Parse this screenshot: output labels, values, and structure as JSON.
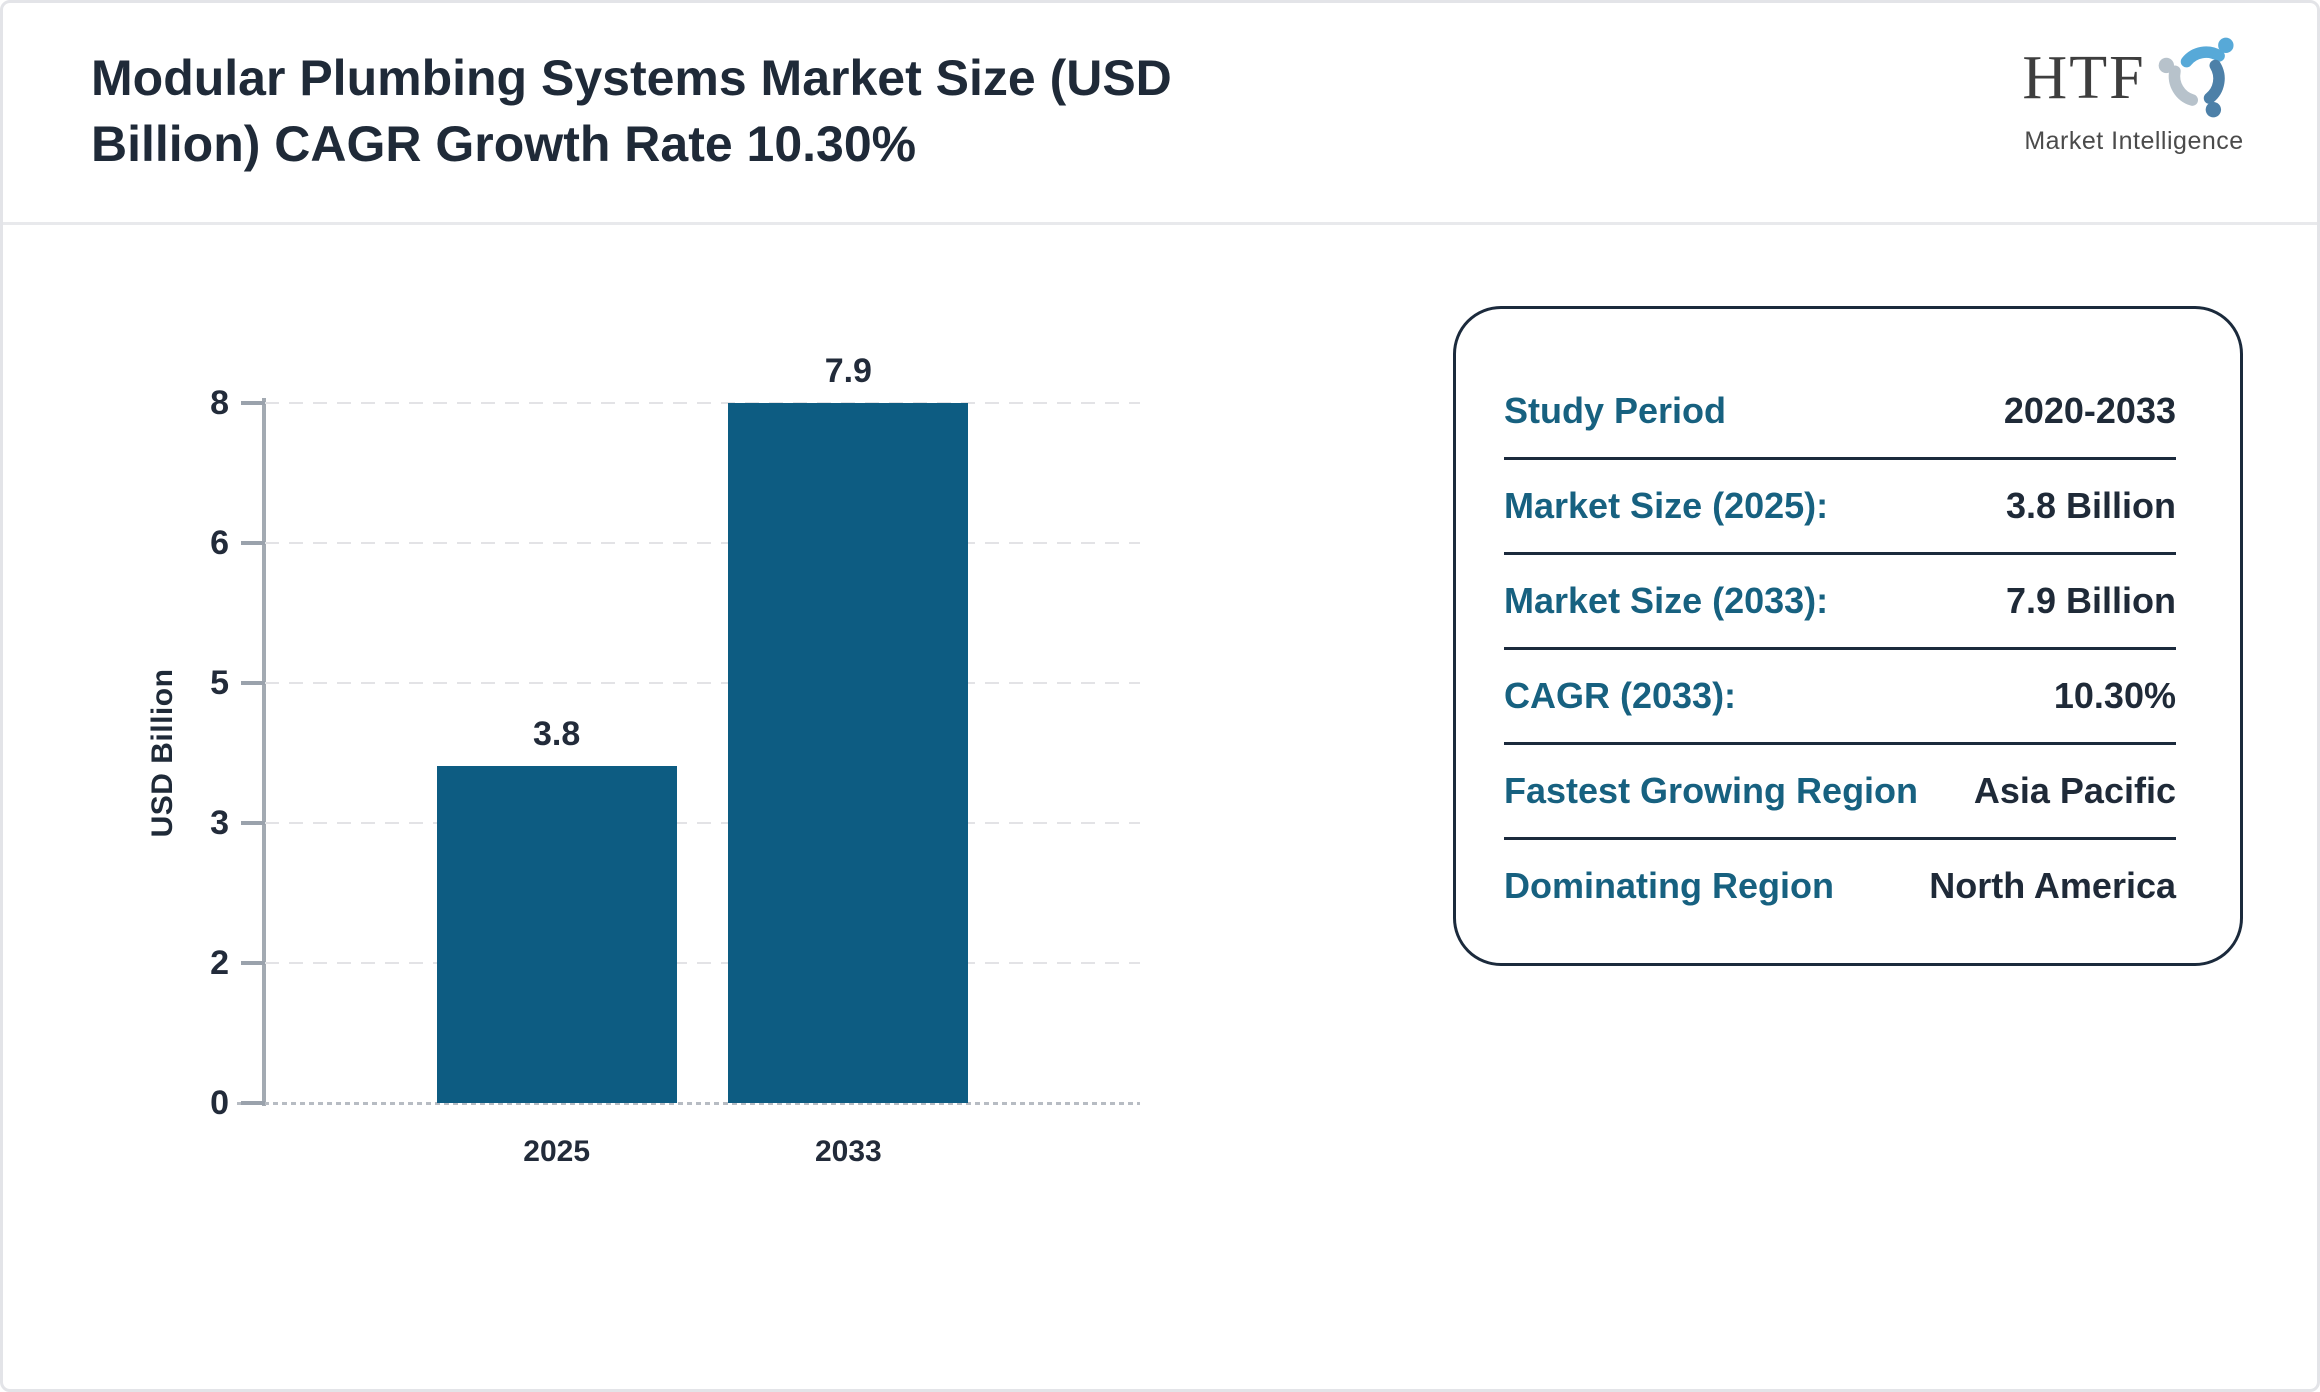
{
  "header": {
    "title": "Modular Plumbing Systems Market Size (USD Billion) CAGR Growth Rate 10.30%",
    "logo": {
      "acronym": "HTF",
      "subtitle": "Market Intelligence",
      "icon": "htf-swirl-icon",
      "colors": {
        "figure_top": "#57a9d8",
        "figure_right": "#4d80a8",
        "figure_left": "#b7c2cb"
      }
    }
  },
  "chart_data": {
    "type": "bar",
    "title": "Modular Plumbing Systems Market Size (USD Billion) CAGR Growth Rate 10.30%",
    "categories": [
      "2025",
      "2033"
    ],
    "values": [
      3.8,
      7.9
    ],
    "bar_labels": [
      "3.8",
      "7.9"
    ],
    "xlabel": "",
    "ylabel": "USD Billion",
    "y_tick_labels_top_to_bottom": [
      "8",
      "6",
      "5",
      "3",
      "2",
      "0"
    ],
    "ylim": [
      0,
      8
    ],
    "value_scale_max": 7.9,
    "grid": "horizontal-dashed",
    "legend": "none",
    "bar_color": "#0d5c82"
  },
  "panel": {
    "rows": [
      {
        "label": "Study Period",
        "value": "2020-2033"
      },
      {
        "label": "Market Size (2025):",
        "value": "3.8 Billion"
      },
      {
        "label": "Market Size (2033):",
        "value": "7.9 Billion"
      },
      {
        "label": "CAGR (2033):",
        "value": "10.30%"
      },
      {
        "label": "Fastest Growing Region",
        "value": "Asia Pacific"
      },
      {
        "label": "Dominating Region",
        "value": "North America"
      }
    ]
  },
  "colors": {
    "bar": "#0d5c82",
    "panel_label_teal": "#176180",
    "text_dark": "#1f2a38",
    "axis_gray": "#9aa2ac",
    "border_gray": "#e3e4e8"
  }
}
